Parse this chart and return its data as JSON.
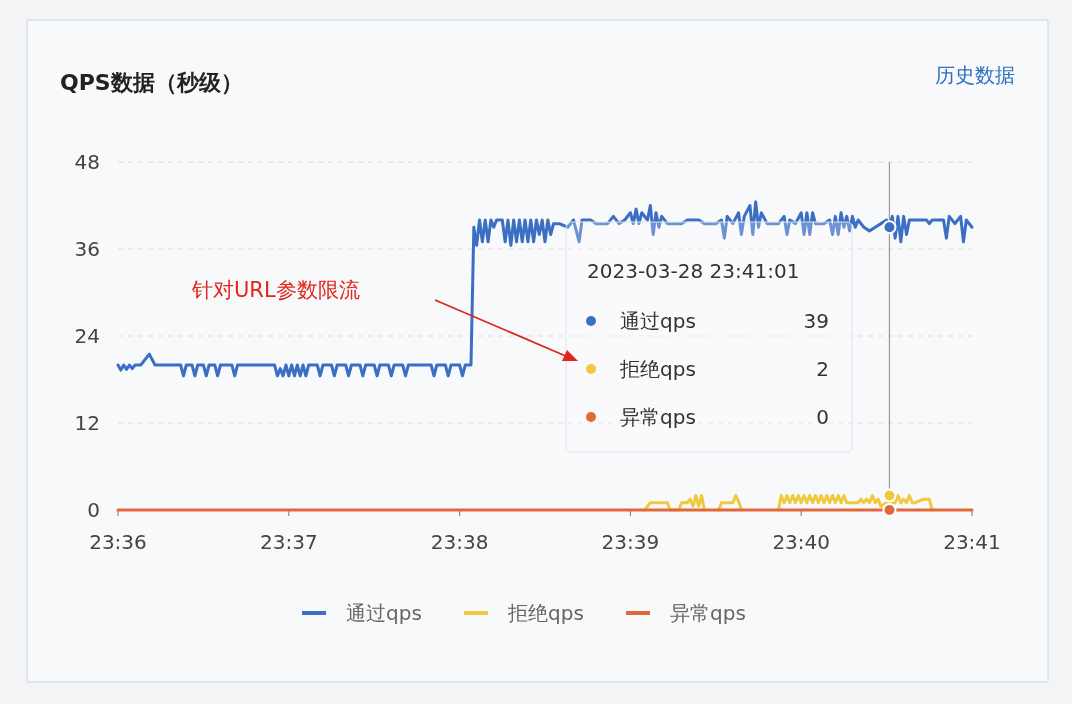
{
  "chart_data": {
    "type": "line",
    "title": "QPS数据（秒级）",
    "annotations": [
      "历史数据",
      "针对URL参数限流",
      "2023-03-28 23:41:01",
      "39",
      "2",
      "0"
    ],
    "xlim": [
      "2023-03-28T23:36:00",
      "2023-03-28T23:41:00"
    ],
    "xticks": [
      {
        "value": "2023-03-28T23:36:00",
        "label": "23:36"
      },
      {
        "value": "2023-03-28T23:37:00",
        "label": "23:37"
      },
      {
        "value": "2023-03-28T23:38:00",
        "label": "23:38"
      },
      {
        "value": "2023-03-28T23:39:00",
        "label": "23:39"
      },
      {
        "value": "2023-03-28T23:40:00",
        "label": "23:40"
      },
      {
        "value": "2023-03-28T23:41:00",
        "label": "23:41"
      }
    ],
    "ylim": [
      0,
      48
    ],
    "yticks": [
      0,
      12,
      24,
      36,
      48
    ],
    "grid": "y",
    "legend": "bottom",
    "marker": "none",
    "line_style": "solid",
    "ref_lines": [
      {
        "axis": "x",
        "value": "2023-03-28T23:40:31",
        "label": null,
        "color": "#9a9a9a"
      }
    ],
    "series": [
      {
        "name": "通过qps",
        "color": "#3a6fc4",
        "x": [
          "2023-03-28T23:36:00",
          "2023-03-28T23:36:01",
          "2023-03-28T23:36:02",
          "2023-03-28T23:36:03",
          "2023-03-28T23:36:04",
          "2023-03-28T23:36:05",
          "2023-03-28T23:36:06",
          "2023-03-28T23:36:08",
          "2023-03-28T23:36:11",
          "2023-03-28T23:36:13",
          "2023-03-28T23:36:22",
          "2023-03-28T23:36:23",
          "2023-03-28T23:36:24",
          "2023-03-28T23:36:26",
          "2023-03-28T23:36:27",
          "2023-03-28T23:36:28",
          "2023-03-28T23:36:30",
          "2023-03-28T23:36:31",
          "2023-03-28T23:36:32",
          "2023-03-28T23:36:34",
          "2023-03-28T23:36:35",
          "2023-03-28T23:36:36",
          "2023-03-28T23:36:40",
          "2023-03-28T23:36:41",
          "2023-03-28T23:36:42",
          "2023-03-28T23:36:55",
          "2023-03-28T23:36:56",
          "2023-03-28T23:36:57",
          "2023-03-28T23:36:58",
          "2023-03-28T23:36:59",
          "2023-03-28T23:37:00",
          "2023-03-28T23:37:01",
          "2023-03-28T23:37:02",
          "2023-03-28T23:37:03",
          "2023-03-28T23:37:04",
          "2023-03-28T23:37:05",
          "2023-03-28T23:37:06",
          "2023-03-28T23:37:07",
          "2023-03-28T23:37:10",
          "2023-03-28T23:37:11",
          "2023-03-28T23:37:12",
          "2023-03-28T23:37:15",
          "2023-03-28T23:37:16",
          "2023-03-28T23:37:17",
          "2023-03-28T23:37:20",
          "2023-03-28T23:37:21",
          "2023-03-28T23:37:22",
          "2023-03-28T23:37:25",
          "2023-03-28T23:37:26",
          "2023-03-28T23:37:27",
          "2023-03-28T23:37:30",
          "2023-03-28T23:37:31",
          "2023-03-28T23:37:32",
          "2023-03-28T23:37:35",
          "2023-03-28T23:37:36",
          "2023-03-28T23:37:37",
          "2023-03-28T23:37:40",
          "2023-03-28T23:37:41",
          "2023-03-28T23:37:42",
          "2023-03-28T23:37:50",
          "2023-03-28T23:37:51",
          "2023-03-28T23:37:52",
          "2023-03-28T23:37:55",
          "2023-03-28T23:37:56",
          "2023-03-28T23:37:57",
          "2023-03-28T23:38:00",
          "2023-03-28T23:38:01",
          "2023-03-28T23:38:02",
          "2023-03-28T23:38:04",
          "2023-03-28T23:38:05",
          "2023-03-28T23:38:06",
          "2023-03-28T23:38:07",
          "2023-03-28T23:38:08",
          "2023-03-28T23:38:09",
          "2023-03-28T23:38:10",
          "2023-03-28T23:38:11",
          "2023-03-28T23:38:12",
          "2023-03-28T23:38:13",
          "2023-03-28T23:38:15",
          "2023-03-28T23:38:16",
          "2023-03-28T23:38:17",
          "2023-03-28T23:38:18",
          "2023-03-28T23:38:19",
          "2023-03-28T23:38:20",
          "2023-03-28T23:38:21",
          "2023-03-28T23:38:22",
          "2023-03-28T23:38:23",
          "2023-03-28T23:38:24",
          "2023-03-28T23:38:25",
          "2023-03-28T23:38:26",
          "2023-03-28T23:38:27",
          "2023-03-28T23:38:28",
          "2023-03-28T23:38:29",
          "2023-03-28T23:38:30",
          "2023-03-28T23:38:31",
          "2023-03-28T23:38:32",
          "2023-03-28T23:38:33",
          "2023-03-28T23:38:35",
          "2023-03-28T23:38:38",
          "2023-03-28T23:38:40",
          "2023-03-28T23:38:42",
          "2023-03-28T23:38:43",
          "2023-03-28T23:38:46",
          "2023-03-28T23:38:48",
          "2023-03-28T23:38:52",
          "2023-03-28T23:38:54",
          "2023-03-28T23:38:56",
          "2023-03-28T23:38:58",
          "2023-03-28T23:39:00",
          "2023-03-28T23:39:01",
          "2023-03-28T23:39:02",
          "2023-03-28T23:39:03",
          "2023-03-28T23:39:04",
          "2023-03-28T23:39:06",
          "2023-03-28T23:39:07",
          "2023-03-28T23:39:08",
          "2023-03-28T23:39:09",
          "2023-03-28T23:39:10",
          "2023-03-28T23:39:11",
          "2023-03-28T23:39:13",
          "2023-03-28T23:39:18",
          "2023-03-28T23:39:20",
          "2023-03-28T23:39:24",
          "2023-03-28T23:39:26",
          "2023-03-28T23:39:30",
          "2023-03-28T23:39:32",
          "2023-03-28T23:39:33",
          "2023-03-28T23:39:34",
          "2023-03-28T23:39:36",
          "2023-03-28T23:39:38",
          "2023-03-28T23:39:39",
          "2023-03-28T23:39:40",
          "2023-03-28T23:39:42",
          "2023-03-28T23:39:43",
          "2023-03-28T23:39:44",
          "2023-03-28T23:39:45",
          "2023-03-28T23:39:46",
          "2023-03-28T23:39:48",
          "2023-03-28T23:39:52",
          "2023-03-28T23:39:54",
          "2023-03-28T23:39:55",
          "2023-03-28T23:39:56",
          "2023-03-28T23:39:58",
          "2023-03-28T23:40:00",
          "2023-03-28T23:40:01",
          "2023-03-28T23:40:02",
          "2023-03-28T23:40:03",
          "2023-03-28T23:40:04",
          "2023-03-28T23:40:05",
          "2023-03-28T23:40:08",
          "2023-03-28T23:40:10",
          "2023-03-28T23:40:11",
          "2023-03-28T23:40:12",
          "2023-03-28T23:40:13",
          "2023-03-28T23:40:14",
          "2023-03-28T23:40:15",
          "2023-03-28T23:40:16",
          "2023-03-28T23:40:17",
          "2023-03-28T23:40:18",
          "2023-03-28T23:40:19",
          "2023-03-28T23:40:20",
          "2023-03-28T23:40:22",
          "2023-03-28T23:40:24",
          "2023-03-28T23:40:26",
          "2023-03-28T23:40:28",
          "2023-03-28T23:40:30",
          "2023-03-28T23:40:31",
          "2023-03-28T23:40:32",
          "2023-03-28T23:40:33",
          "2023-03-28T23:40:34",
          "2023-03-28T23:40:35",
          "2023-03-28T23:40:36",
          "2023-03-28T23:40:37",
          "2023-03-28T23:40:38",
          "2023-03-28T23:40:40",
          "2023-03-28T23:40:44",
          "2023-03-28T23:40:45",
          "2023-03-28T23:40:46",
          "2023-03-28T23:40:48",
          "2023-03-28T23:40:50",
          "2023-03-28T23:40:51",
          "2023-03-28T23:40:52",
          "2023-03-28T23:40:54",
          "2023-03-28T23:40:56",
          "2023-03-28T23:40:57",
          "2023-03-28T23:40:58",
          "2023-03-28T23:41:00"
        ],
        "values": [
          20,
          19.3,
          20,
          19.4,
          20,
          19.5,
          20,
          20,
          21.5,
          20,
          20,
          18.5,
          20,
          20,
          18.5,
          20,
          20,
          18.5,
          20,
          20,
          18.5,
          20,
          20,
          18.5,
          20,
          20,
          18.5,
          19.5,
          18.5,
          20,
          18.5,
          20,
          18.5,
          20,
          18.5,
          20,
          18.5,
          20,
          20,
          18.5,
          20,
          20,
          18.5,
          20,
          20,
          18.5,
          20,
          20,
          18.5,
          20,
          20,
          18.5,
          20,
          20,
          18.5,
          20,
          20,
          18.5,
          20,
          20,
          18.5,
          20,
          20,
          18.5,
          20,
          20,
          18.5,
          20,
          20,
          39,
          36.5,
          40,
          37,
          40,
          37,
          40,
          39,
          40,
          40,
          37,
          40,
          36.5,
          40,
          37,
          40,
          37,
          40,
          37,
          40,
          37,
          40,
          38,
          40,
          37,
          40,
          38,
          39.5,
          39.5,
          39,
          40,
          37,
          40,
          40,
          39.5,
          39.5,
          40.5,
          39.5,
          40,
          41,
          39.5,
          41.5,
          39.5,
          41,
          40,
          42,
          38,
          41,
          39,
          40.5,
          39.5,
          39.5,
          40,
          40,
          39.5,
          39.5,
          40,
          37.5,
          40.5,
          39.5,
          41,
          38,
          40.5,
          42,
          38,
          42.5,
          39,
          41,
          39.5,
          39.5,
          40.5,
          38,
          40,
          39.5,
          41,
          38,
          41,
          38,
          41,
          39.5,
          39.5,
          40,
          38,
          40.5,
          38,
          41,
          39,
          40.5,
          38.5,
          40.5,
          39,
          40,
          39,
          38.5,
          39,
          39.5,
          40,
          39,
          40.5,
          37.5,
          40.5,
          37,
          40.5,
          38,
          40,
          40,
          40,
          39.5,
          40,
          40,
          40,
          37.5,
          40.5,
          39.5,
          40.5,
          37,
          40,
          39
        ]
      },
      {
        "name": "拒绝qps",
        "color": "#f0c93e",
        "x": [
          "2023-03-28T23:39:05",
          "2023-03-28T23:39:07",
          "2023-03-28T23:39:13",
          "2023-03-28T23:39:14",
          "2023-03-28T23:39:17",
          "2023-03-28T23:39:18",
          "2023-03-28T23:39:20",
          "2023-03-28T23:39:21",
          "2023-03-28T23:39:22",
          "2023-03-28T23:39:23",
          "2023-03-28T23:39:24",
          "2023-03-28T23:39:25",
          "2023-03-28T23:39:26",
          "2023-03-28T23:39:28",
          "2023-03-28T23:39:31",
          "2023-03-28T23:39:32",
          "2023-03-28T23:39:36",
          "2023-03-28T23:39:37",
          "2023-03-28T23:39:38",
          "2023-03-28T23:39:39",
          "2023-03-28T23:39:45",
          "2023-03-28T23:39:52",
          "2023-03-28T23:39:53",
          "2023-03-28T23:39:54",
          "2023-03-28T23:39:55",
          "2023-03-28T23:39:56",
          "2023-03-28T23:39:57",
          "2023-03-28T23:39:58",
          "2023-03-28T23:39:59",
          "2023-03-28T23:40:00",
          "2023-03-28T23:40:01",
          "2023-03-28T23:40:02",
          "2023-03-28T23:40:03",
          "2023-03-28T23:40:04",
          "2023-03-28T23:40:05",
          "2023-03-28T23:40:06",
          "2023-03-28T23:40:07",
          "2023-03-28T23:40:08",
          "2023-03-28T23:40:09",
          "2023-03-28T23:40:10",
          "2023-03-28T23:40:11",
          "2023-03-28T23:40:12",
          "2023-03-28T23:40:13",
          "2023-03-28T23:40:14",
          "2023-03-28T23:40:15",
          "2023-03-28T23:40:16",
          "2023-03-28T23:40:17",
          "2023-03-28T23:40:20",
          "2023-03-28T23:40:21",
          "2023-03-28T23:40:22",
          "2023-03-28T23:40:23",
          "2023-03-28T23:40:24",
          "2023-03-28T23:40:25",
          "2023-03-28T23:40:26",
          "2023-03-28T23:40:27",
          "2023-03-28T23:40:28",
          "2023-03-28T23:40:30",
          "2023-03-28T23:40:31",
          "2023-03-28T23:40:32",
          "2023-03-28T23:40:33",
          "2023-03-28T23:40:34",
          "2023-03-28T23:40:35",
          "2023-03-28T23:40:36",
          "2023-03-28T23:40:37",
          "2023-03-28T23:40:38",
          "2023-03-28T23:40:39",
          "2023-03-28T23:40:40",
          "2023-03-28T23:40:43",
          "2023-03-28T23:40:45",
          "2023-03-28T23:40:46"
        ],
        "values": [
          0,
          1,
          1,
          0,
          0,
          1,
          1,
          1.5,
          0.5,
          2,
          0.5,
          2,
          0,
          null,
          0,
          1,
          1,
          2,
          1.2,
          0,
          null,
          0,
          2,
          1,
          2,
          1,
          2,
          1,
          2,
          1,
          2,
          1,
          2,
          1,
          2,
          1,
          2,
          1,
          2,
          1,
          2,
          1,
          2,
          1,
          2,
          1,
          1,
          1,
          1.5,
          1,
          1.5,
          1,
          2,
          1,
          1.5,
          0.5,
          1,
          2,
          1,
          1,
          2,
          1,
          1.5,
          1,
          2,
          1,
          1,
          1.5,
          1.5,
          0
        ]
      },
      {
        "name": "异常qps",
        "color": "#e0693c",
        "x": [
          "2023-03-28T23:36:00",
          "2023-03-28T23:41:00"
        ],
        "values": [
          0,
          0
        ]
      }
    ]
  }
}
